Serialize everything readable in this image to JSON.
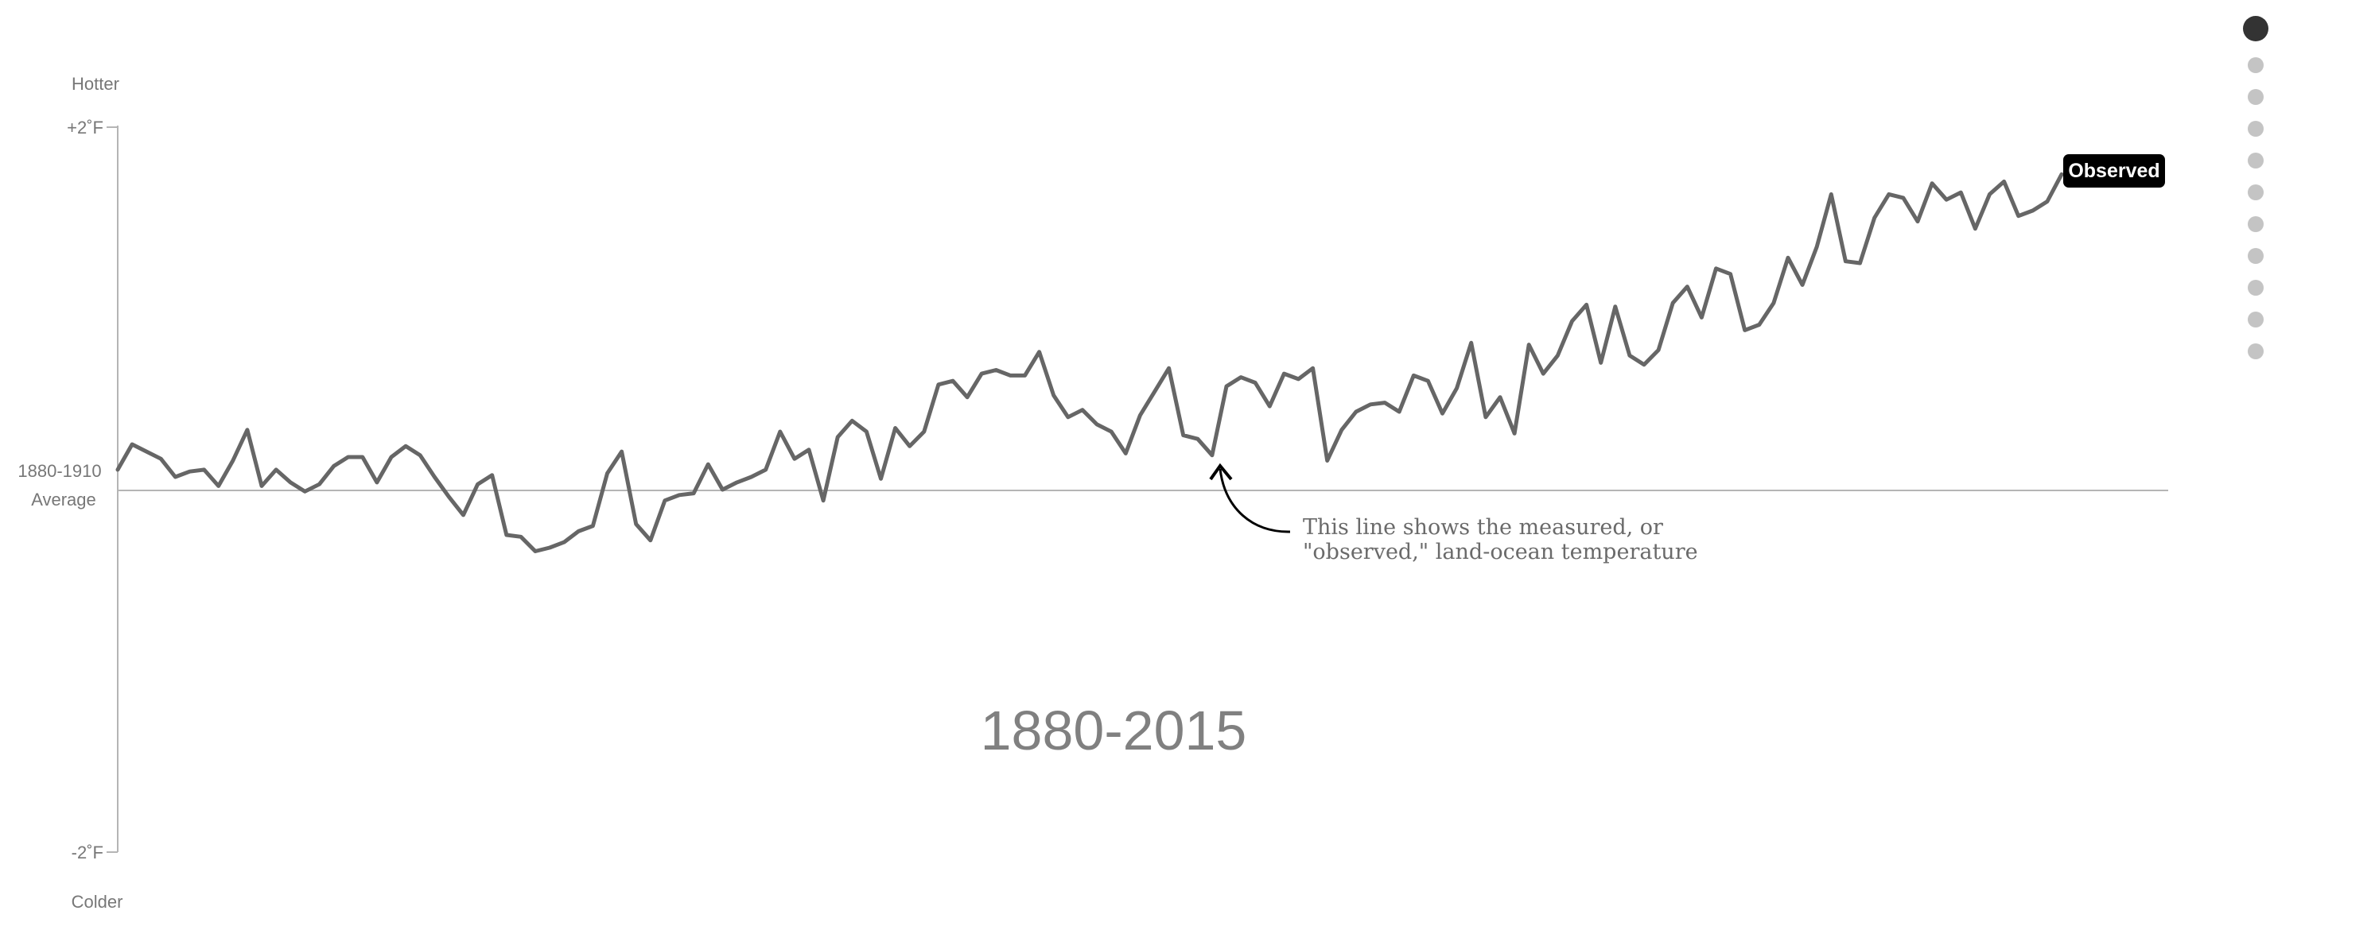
{
  "chart_data": {
    "type": "line",
    "x_label_top": "Hotter",
    "x_label_bottom": "Colder",
    "y_ticks": [
      {
        "value": 2,
        "label": "+2˚F"
      },
      {
        "value": -2,
        "label": "-2˚F"
      }
    ],
    "ylim": [
      -2,
      2
    ],
    "baseline": {
      "value": 0,
      "label_line1": "1880-1910",
      "label_line2": "Average"
    },
    "period_label": "1880-2015",
    "series": [
      {
        "name": "Observed",
        "color": "#666666",
        "x_start": 1880,
        "x_end": 2015,
        "values": [
          0.11,
          0.25,
          0.21,
          0.17,
          0.07,
          0.1,
          0.11,
          0.02,
          0.16,
          0.33,
          0.02,
          0.11,
          0.04,
          -0.01,
          0.03,
          0.13,
          0.18,
          0.18,
          0.04,
          0.18,
          0.24,
          0.19,
          0.07,
          -0.04,
          -0.14,
          0.03,
          0.08,
          -0.25,
          -0.26,
          -0.34,
          -0.32,
          -0.29,
          -0.23,
          -0.2,
          0.09,
          0.21,
          -0.19,
          -0.28,
          -0.06,
          -0.03,
          -0.02,
          0.14,
          0.0,
          0.04,
          0.07,
          0.11,
          0.32,
          0.17,
          0.22,
          -0.06,
          0.29,
          0.38,
          0.32,
          0.06,
          0.34,
          0.24,
          0.32,
          0.58,
          0.6,
          0.51,
          0.64,
          0.66,
          0.63,
          0.63,
          0.76,
          0.52,
          0.4,
          0.44,
          0.36,
          0.32,
          0.2,
          0.41,
          0.54,
          0.67,
          0.3,
          0.28,
          0.19,
          0.57,
          0.62,
          0.59,
          0.46,
          0.64,
          0.61,
          0.67,
          0.16,
          0.33,
          0.43,
          0.47,
          0.48,
          0.43,
          0.63,
          0.6,
          0.42,
          0.56,
          0.81,
          0.4,
          0.51,
          0.31,
          0.8,
          0.64,
          0.74,
          0.93,
          1.02,
          0.7,
          1.01,
          0.74,
          0.69,
          0.77,
          1.03,
          1.12,
          0.95,
          1.22,
          1.19,
          0.88,
          0.91,
          1.03,
          1.28,
          1.13,
          1.34,
          1.63,
          1.26,
          1.25,
          1.5,
          1.63,
          1.61,
          1.48,
          1.69,
          1.6,
          1.64,
          1.44,
          1.63,
          1.7,
          1.51,
          1.54,
          1.59,
          1.74
        ]
      }
    ],
    "annotation": {
      "line1": "This line shows the measured, or",
      "line2": "\"observed,\" land-ocean temperature",
      "points_to_year": 1964
    }
  },
  "navigation": {
    "dots": 11,
    "active_index": 0
  }
}
